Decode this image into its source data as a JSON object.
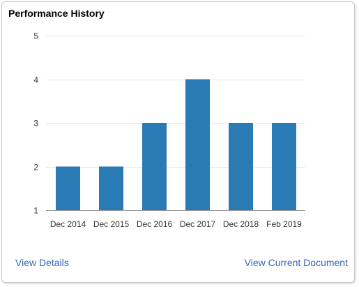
{
  "card": {
    "title": "Performance History"
  },
  "links": {
    "view_details": "View Details",
    "view_current_document": "View Current Document"
  },
  "colors": {
    "bar": "#2a7ab6",
    "link": "#3366bb",
    "grid": "#e6e6e6",
    "axis": "#999999"
  },
  "chart_data": {
    "type": "bar",
    "title": "",
    "xlabel": "",
    "ylabel": "",
    "categories": [
      "Dec 2014",
      "Dec 2015",
      "Dec 2016",
      "Dec 2017",
      "Dec 2018",
      "Feb 2019"
    ],
    "values": [
      2,
      2,
      3,
      4,
      3,
      3
    ],
    "ylim": [
      1,
      5
    ],
    "yticks": [
      1,
      2,
      3,
      4,
      5
    ],
    "grid": true,
    "legend": "none"
  }
}
